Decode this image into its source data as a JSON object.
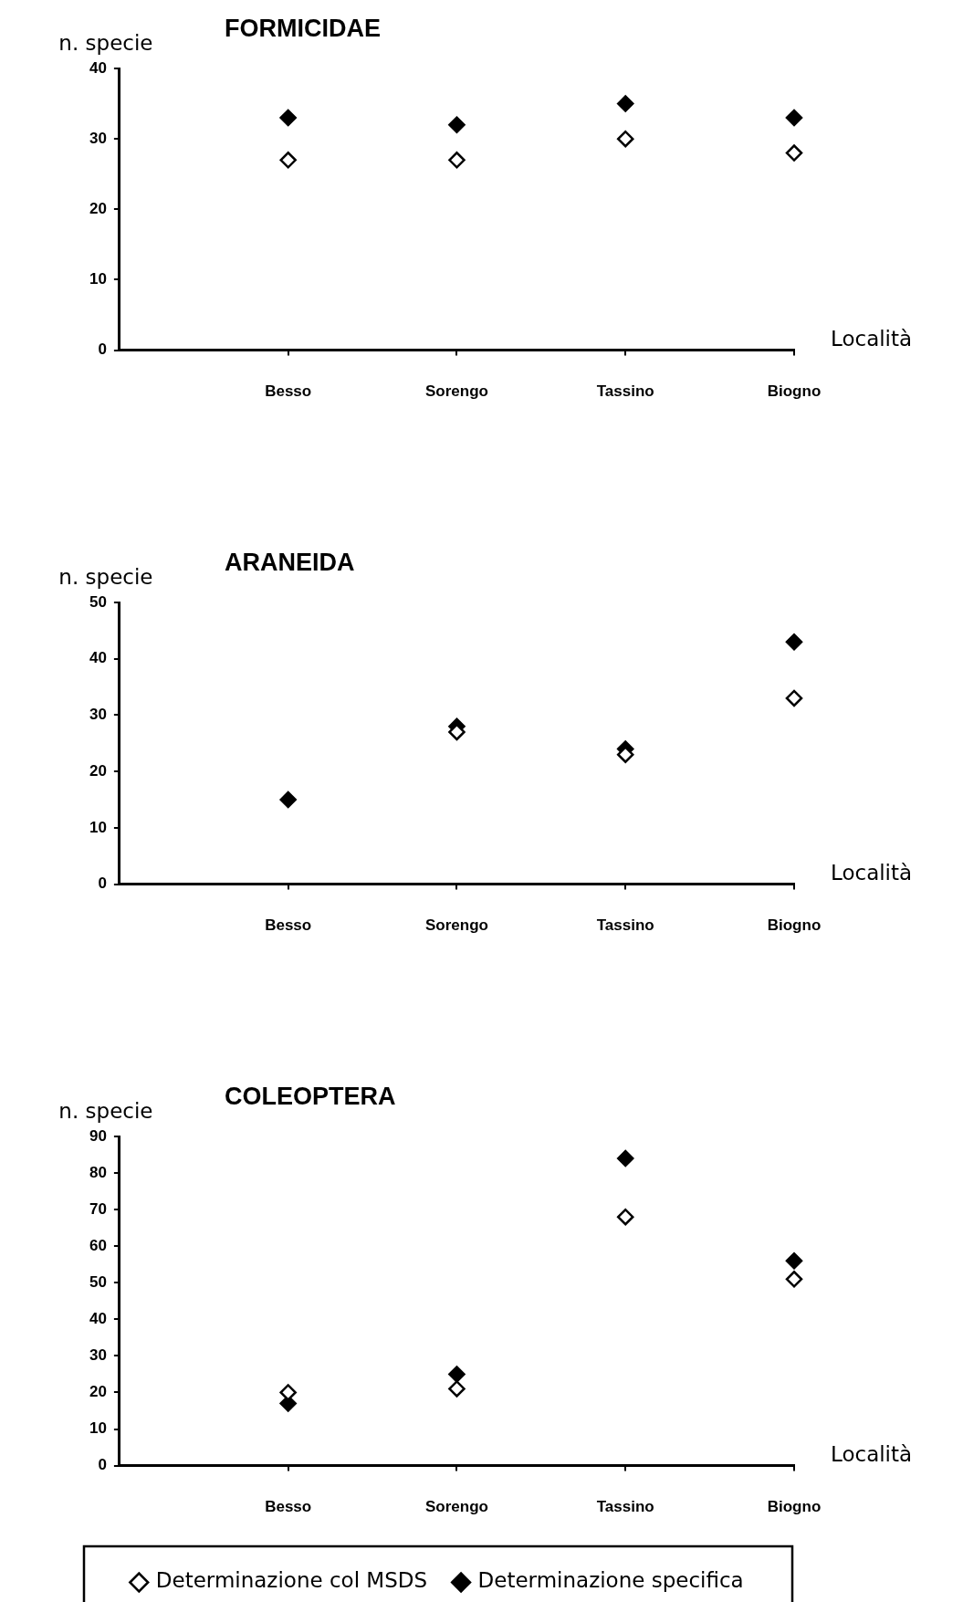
{
  "chart_data": [
    {
      "type": "scatter",
      "title": "FORMICIDAE",
      "ylabel": "n. specie",
      "xlabel": "Località",
      "categories": [
        "Besso",
        "Sorengo",
        "Tassino",
        "Biogno"
      ],
      "ylim": [
        0,
        40
      ],
      "yticks": [
        0,
        10,
        20,
        30,
        40
      ],
      "grid": false,
      "legend": false,
      "marker": "diamond",
      "series": [
        {
          "color": "#ffffff",
          "values": [
            27,
            27,
            30,
            28
          ]
        },
        {
          "color": "#000000",
          "values": [
            33,
            32,
            35,
            33
          ]
        }
      ]
    },
    {
      "type": "scatter",
      "title": "ARANEIDA",
      "ylabel": "n. specie",
      "xlabel": "Località",
      "categories": [
        "Besso",
        "Sorengo",
        "Tassino",
        "Biogno"
      ],
      "ylim": [
        0,
        50
      ],
      "yticks": [
        0,
        10,
        20,
        30,
        40,
        50
      ],
      "grid": false,
      "legend": false,
      "marker": "diamond",
      "series": [
        {
          "color": "#ffffff",
          "values": [
            null,
            27,
            23,
            33
          ]
        },
        {
          "color": "#000000",
          "values": [
            15,
            28,
            24,
            43
          ]
        }
      ]
    },
    {
      "type": "scatter",
      "title": "COLEOPTERA",
      "ylabel": "n. specie",
      "xlabel": "Località",
      "categories": [
        "Besso",
        "Sorengo",
        "Tassino",
        "Biogno"
      ],
      "ylim": [
        0,
        90
      ],
      "yticks": [
        0,
        10,
        20,
        30,
        40,
        50,
        60,
        70,
        80,
        90
      ],
      "grid": false,
      "legend": "bottom",
      "marker": "diamond",
      "series": [
        {
          "name": "Determinazione col MSDS",
          "color": "#ffffff",
          "values": [
            20,
            21,
            68,
            51
          ]
        },
        {
          "name": "Determinazione specifica",
          "color": "#000000",
          "values": [
            17,
            25,
            84,
            56
          ]
        }
      ]
    }
  ]
}
